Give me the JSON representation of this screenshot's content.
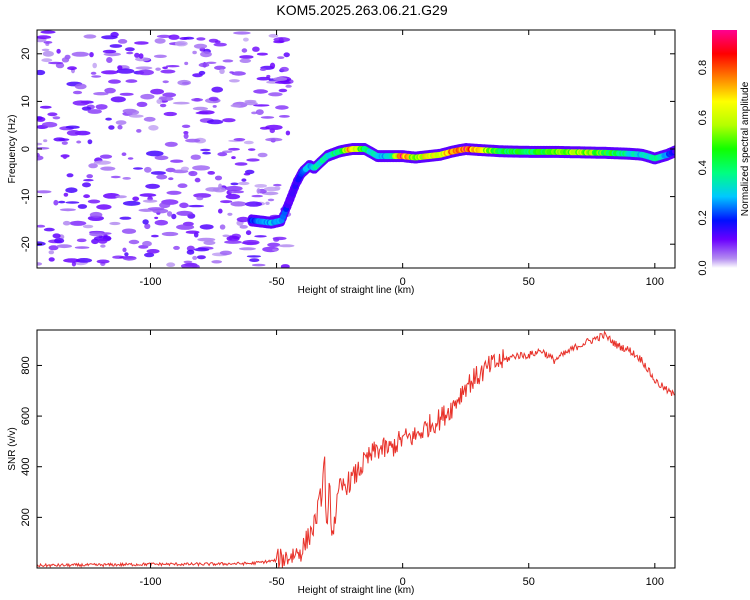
{
  "chart_data": [
    {
      "type": "heatmap",
      "title": "KOM5.2025.263.06.21.G29",
      "xlabel": "Height of straight line (km)",
      "ylabel": "Frequency (Hz)",
      "xlim": [
        -145,
        108
      ],
      "ylim": [
        -25,
        25
      ],
      "xticks": [
        -100,
        -50,
        0,
        50,
        100
      ],
      "yticks": [
        -20,
        -10,
        0,
        10,
        20
      ],
      "colorbar": {
        "label": "Normalized spectral amplitude",
        "range": [
          0.0,
          0.95
        ],
        "ticks": [
          0.0,
          0.2,
          0.4,
          0.6,
          0.8
        ]
      },
      "ridge": {
        "name": "Doppler frequency trace",
        "x": [
          -60,
          -52,
          -48,
          -45,
          -42,
          -40,
          -37,
          -35,
          -30,
          -25,
          -20,
          -15,
          -10,
          -5,
          0,
          5,
          10,
          15,
          20,
          25,
          30,
          40,
          50,
          60,
          70,
          80,
          90,
          95,
          100,
          105,
          108
        ],
        "y": [
          -15,
          -15.5,
          -15,
          -11,
          -7,
          -5,
          -3.5,
          -4,
          -1.5,
          -0.5,
          0,
          0,
          -1.5,
          -1.5,
          -1.5,
          -1.8,
          -1.5,
          -1.2,
          -0.5,
          0,
          -0.2,
          -0.5,
          -0.6,
          -0.6,
          -0.7,
          -0.8,
          -1.0,
          -1.2,
          -2.0,
          -1.2,
          -0.5
        ],
        "amplitude": [
          0.2,
          0.3,
          0.25,
          0.15,
          0.15,
          0.25,
          0.3,
          0.35,
          0.35,
          0.4,
          0.8,
          0.4,
          0.3,
          0.3,
          0.9,
          0.5,
          0.7,
          0.6,
          0.8,
          0.9,
          0.7,
          0.45,
          0.45,
          0.5,
          0.6,
          0.5,
          0.35,
          0.3,
          0.4,
          0.25,
          0.15
        ]
      }
    },
    {
      "type": "line",
      "xlabel": "Height of straight line (km)",
      "ylabel": "SNR (v/v)",
      "xlim": [
        -145,
        108
      ],
      "ylim": [
        0,
        940
      ],
      "xticks": [
        -100,
        -50,
        0,
        50,
        100
      ],
      "yticks": [
        200,
        400,
        600,
        800
      ],
      "series": [
        {
          "name": "SNR",
          "color": "#e8322a",
          "x": [
            -145,
            -120,
            -100,
            -80,
            -60,
            -50,
            -45,
            -40,
            -35,
            -32,
            -31,
            -30,
            -29,
            -28,
            -25,
            -20,
            -15,
            -10,
            -5,
            0,
            5,
            10,
            15,
            20,
            25,
            30,
            35,
            40,
            45,
            50,
            55,
            60,
            65,
            70,
            75,
            80,
            85,
            90,
            95,
            100,
            105,
            108
          ],
          "y": [
            10,
            12,
            15,
            15,
            18,
            30,
            45,
            70,
            170,
            300,
            440,
            100,
            330,
            130,
            310,
            350,
            420,
            470,
            470,
            510,
            520,
            560,
            590,
            640,
            720,
            760,
            800,
            820,
            840,
            840,
            860,
            820,
            850,
            880,
            900,
            920,
            880,
            860,
            820,
            740,
            700,
            680
          ]
        }
      ]
    }
  ]
}
